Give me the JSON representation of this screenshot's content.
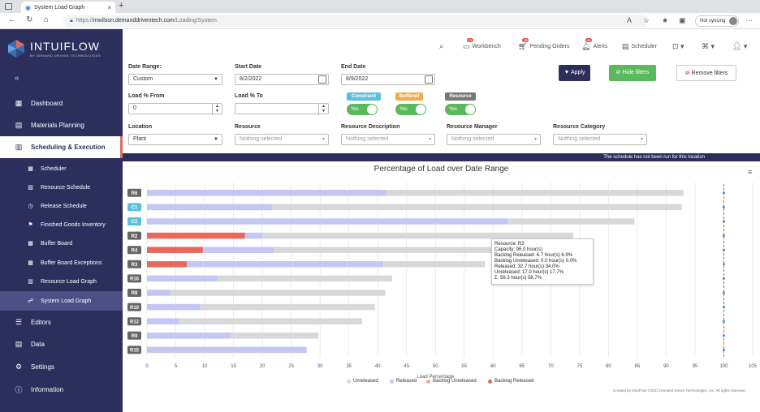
{
  "browser": {
    "tab_title": "System Load Graph",
    "url_prefix": "https://",
    "url_host": "mwilson.demanddriventech.com",
    "url_path": "/Loading/System",
    "sync_label": "Not syncing"
  },
  "sidebar": {
    "brand": "INTUIFLOW",
    "brand_sub": "BY DEMAND DRIVEN TECHNOLOGIES",
    "nav": [
      {
        "label": "Dashboard"
      },
      {
        "label": "Materials Planning"
      },
      {
        "label": "Scheduling & Execution"
      },
      {
        "label": "Editors"
      },
      {
        "label": "Data"
      },
      {
        "label": "Settings"
      },
      {
        "label": "Information"
      }
    ],
    "sub": [
      {
        "label": "Scheduler"
      },
      {
        "label": "Resource Schedule"
      },
      {
        "label": "Release Schedule"
      },
      {
        "label": "Finished Goods Inventory"
      },
      {
        "label": "Buffer Board"
      },
      {
        "label": "Buffer Board Exceptions"
      },
      {
        "label": "Resource Load Graph"
      },
      {
        "label": "System Load Graph"
      }
    ]
  },
  "topbar": {
    "workbench": "Workbench",
    "workbench_count": "23",
    "pending": "Pending Orders",
    "pending_count": "38",
    "alerts": "Alerts",
    "alerts_count": "40",
    "scheduler": "Scheduler"
  },
  "filters": {
    "date_range_label": "Date Range:",
    "date_range_value": "Custom",
    "start_label": "Start Date",
    "start_value": "8/2/2022",
    "end_label": "End Date",
    "end_value": "8/9/2022",
    "load_from_label": "Load % From",
    "load_from_value": "0",
    "load_to_label": "Load % To",
    "load_to_value": "",
    "constraint": "Constraint",
    "buffered": "Buffered",
    "resource": "Resource",
    "yes": "Yes",
    "location_label": "Location",
    "location_value": "Plant",
    "resource_label": "Resource",
    "resdesc_label": "Resource Description",
    "resmgr_label": "Resource Manager",
    "rescat_label": "Resource Category",
    "nothing": "Nothing selected",
    "apply": "Apply",
    "hide": "Hide filters",
    "remove": "Remove filters",
    "colors": {
      "constraint": "#5bc0de",
      "buffered": "#f0ad4e",
      "resource": "#777777"
    }
  },
  "banner": "The schedule has not been run for this location",
  "tooltip": {
    "resource": "Resource: R3",
    "capacity": "Capacity: 96.0 hour(s)",
    "backlog_released": "Backlog Released: 6.7 hour(s) 6.9%",
    "backlog_unreleased": "Backlog Unreleased: 0.0 hour(s) 0.0%",
    "released": "Released: 32.7 hour(s) 34.0%",
    "unreleased": "Unreleased: 17.0 hour(s) 17.7%",
    "total": "Σ: 56.3 hour(s) 58.7%"
  },
  "footer": "Created by IntuiFlow ©2022 Demand Driven Technologies, Inc. All rights reserved.",
  "chart_data": {
    "type": "bar",
    "orientation": "horizontal",
    "stacked": true,
    "title": "Percentage of Load over Date Range",
    "xlabel": "Load Percentage",
    "xlim": [
      0,
      105
    ],
    "xticks": [
      0,
      5,
      10,
      15,
      20,
      25,
      30,
      35,
      40,
      45,
      50,
      55,
      60,
      65,
      70,
      75,
      80,
      85,
      90,
      95,
      100,
      105
    ],
    "reference_line": 100,
    "grid": true,
    "legend_position": "bottom",
    "categories": [
      "R6",
      "C1",
      "C2",
      "R2",
      "R4",
      "R3",
      "R16",
      "R8",
      "R10",
      "R12",
      "R9",
      "R15"
    ],
    "category_types": [
      "resource",
      "constraint",
      "constraint",
      "resource",
      "resource",
      "resource",
      "resource",
      "resource",
      "resource",
      "resource",
      "resource",
      "resource"
    ],
    "category_colors": {
      "resource": "#666666",
      "constraint": "#5bc0de"
    },
    "series": [
      {
        "name": "Backlog Released",
        "color": "#e8685c",
        "values": [
          0,
          0,
          0,
          17,
          9.7,
          6.9,
          0,
          0,
          0,
          0,
          0,
          0
        ]
      },
      {
        "name": "Backlog Unreleased",
        "color": "#f4a3a0",
        "values": [
          0,
          0,
          0,
          0,
          0,
          0,
          0,
          0,
          0,
          0,
          0,
          0
        ]
      },
      {
        "name": "Released",
        "color": "#c4c6f4",
        "values": [
          41.5,
          21.7,
          62.5,
          3,
          12.3,
          34,
          12.2,
          4,
          9.2,
          5.6,
          14.6,
          27.7
        ]
      },
      {
        "name": "Unreleased",
        "color": "#d8d8d8",
        "values": [
          51.5,
          71,
          22,
          53.9,
          51.5,
          17.7,
          30.3,
          37.3,
          30.3,
          31.7,
          15.1,
          0
        ]
      }
    ],
    "legend_order": [
      "Unreleased",
      "Released",
      "Backlog Unreleased",
      "Backlog Released"
    ]
  }
}
